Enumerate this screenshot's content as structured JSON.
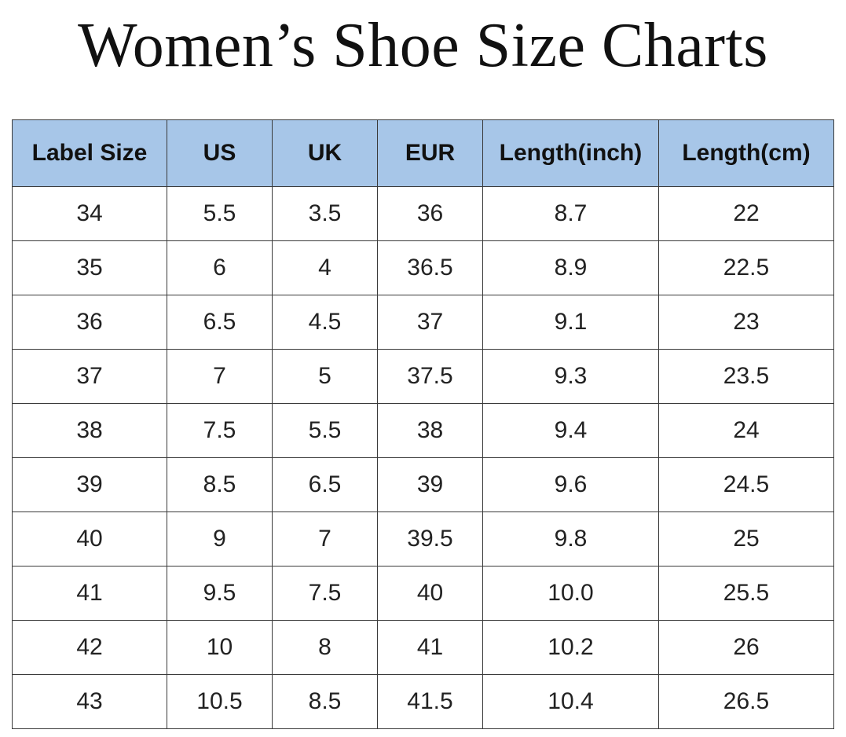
{
  "title": "Women’s Shoe Size Charts",
  "colors": {
    "header_background": "#a7c6e8",
    "border": "#3a3a3a",
    "background": "#ffffff"
  },
  "table": {
    "headers": [
      "Label Size",
      "US",
      "UK",
      "EUR",
      "Length(inch)",
      "Length(cm)"
    ],
    "rows": [
      [
        "34",
        "5.5",
        "3.5",
        "36",
        "8.7",
        "22"
      ],
      [
        "35",
        "6",
        "4",
        "36.5",
        "8.9",
        "22.5"
      ],
      [
        "36",
        "6.5",
        "4.5",
        "37",
        "9.1",
        "23"
      ],
      [
        "37",
        "7",
        "5",
        "37.5",
        "9.3",
        "23.5"
      ],
      [
        "38",
        "7.5",
        "5.5",
        "38",
        "9.4",
        "24"
      ],
      [
        "39",
        "8.5",
        "6.5",
        "39",
        "9.6",
        "24.5"
      ],
      [
        "40",
        "9",
        "7",
        "39.5",
        "9.8",
        "25"
      ],
      [
        "41",
        "9.5",
        "7.5",
        "40",
        "10.0",
        "25.5"
      ],
      [
        "42",
        "10",
        "8",
        "41",
        "10.2",
        "26"
      ],
      [
        "43",
        "10.5",
        "8.5",
        "41.5",
        "10.4",
        "26.5"
      ]
    ]
  }
}
